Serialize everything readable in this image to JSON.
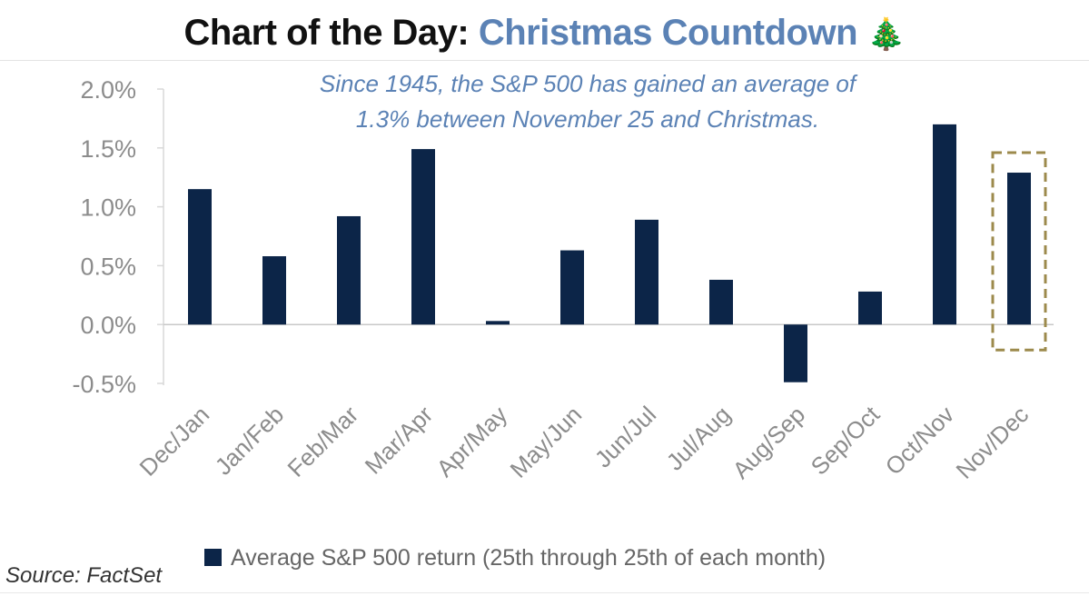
{
  "header": {
    "title_prefix": "Chart of the Day: ",
    "title_accent": "Christmas Countdown",
    "title_emoji": "🎄"
  },
  "source": "Source: FactSet",
  "colors": {
    "bar": "#0c2548",
    "accent": "#5b82b5",
    "axis_text": "#8c8c8c",
    "highlight_box": "#9c8a4c"
  },
  "chart_data": {
    "type": "bar",
    "title": "Chart of the Day: Christmas Countdown",
    "annotation": [
      "Since 1945, the S&P 500 has gained an average of",
      "1.3% between November 25 and Christmas."
    ],
    "categories": [
      "Dec/Jan",
      "Jan/Feb",
      "Feb/Mar",
      "Mar/Apr",
      "Apr/May",
      "May/Jun",
      "Jun/Jul",
      "Jul/Aug",
      "Aug/Sep",
      "Sep/Oct",
      "Oct/Nov",
      "Nov/Dec"
    ],
    "series": [
      {
        "name": "Average S&P 500 return (25th through 25th of each month)",
        "values": [
          1.15,
          0.58,
          0.92,
          1.49,
          0.03,
          0.63,
          0.89,
          0.38,
          -0.49,
          0.28,
          1.7,
          1.29
        ]
      }
    ],
    "yticks": [
      2.0,
      1.5,
      1.0,
      0.5,
      0.0,
      -0.5
    ],
    "ytick_labels": [
      "2.0%",
      "1.5%",
      "1.0%",
      "0.5%",
      "0.0%",
      "-0.5%"
    ],
    "ylim": [
      -0.5,
      2.0
    ],
    "xlabel": "",
    "ylabel": "",
    "highlight_category": "Nov/Dec",
    "legend_position": "bottom-center",
    "grid": false
  }
}
